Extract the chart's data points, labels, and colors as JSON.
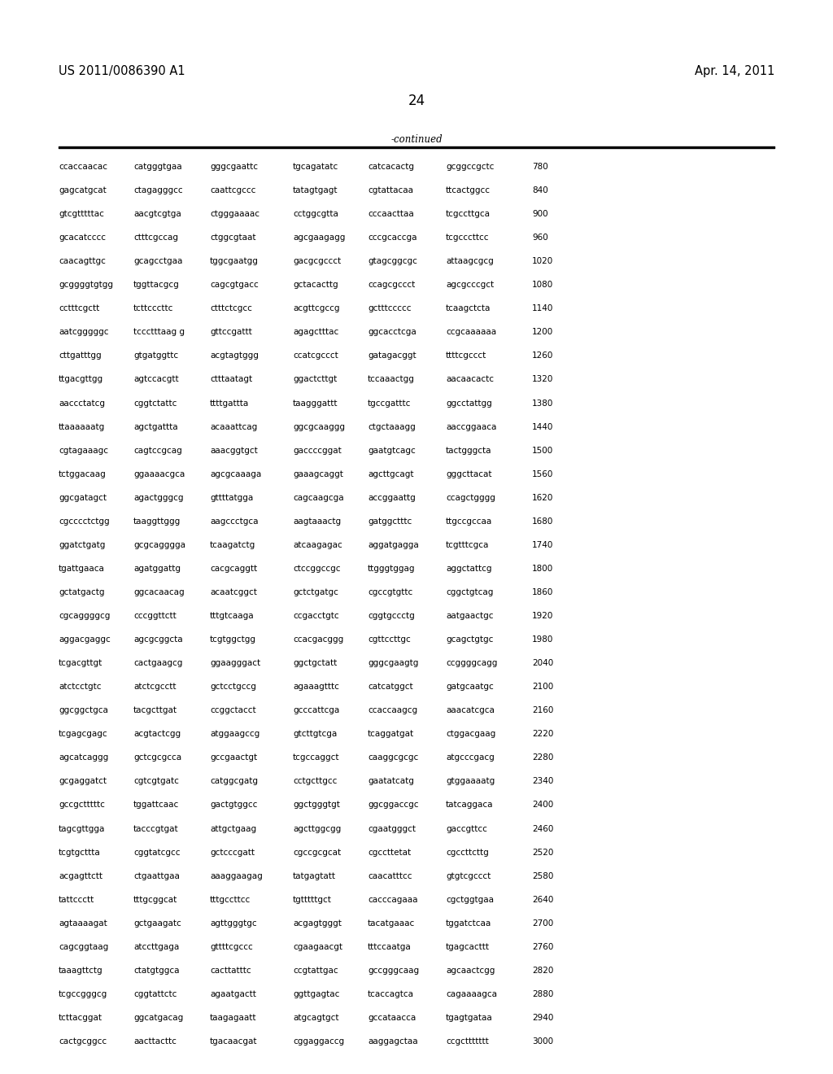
{
  "header_left": "US 2011/0086390 A1",
  "header_right": "Apr. 14, 2011",
  "page_number": "24",
  "continued_label": "-continued",
  "background_color": "#ffffff",
  "text_color": "#000000",
  "font_size": 7.5,
  "header_font_size": 10.5,
  "page_num_font_size": 12,
  "sequences": [
    [
      "ccaccaacac",
      "catgggtgaa",
      "gggcgaattc",
      "tgcagatatc",
      "catcacactg",
      "gcggccgctc",
      "780"
    ],
    [
      "gagcatgcat",
      "ctagagggcc",
      "caattcgccc",
      "tatagtgagt",
      "cgtattacaa",
      "ttcactggcc",
      "840"
    ],
    [
      "gtcgtttttac",
      "aacgtcgtga",
      "ctgggaaaac",
      "cctggcgtta",
      "cccaacttaa",
      "tcgccttgca",
      "900"
    ],
    [
      "gcacatcccc",
      "ctttcgccag",
      "ctggcgtaat",
      "agcgaagagg",
      "cccgcaccga",
      "tcgcccttcc",
      "960"
    ],
    [
      "caacagttgc",
      "gcagcctgaa",
      "tggcgaatgg",
      "gacgcgccct",
      "gtagcggcgc",
      "attaagcgcg",
      "1020"
    ],
    [
      "gcggggtgtgg",
      "tggttacgcg",
      "cagcgtgacc",
      "gctacacttg",
      "ccagcgccct",
      "agcgcccgct",
      "1080"
    ],
    [
      "cctttcgctt",
      "tcttcccttc",
      "ctttctcgcc",
      "acgttcgccg",
      "gctttccccc",
      "tcaagctcta",
      "1140"
    ],
    [
      "aatcgggggc",
      "tccctttaag g",
      "gttccgattt",
      "agagctttac",
      "ggcacctcga",
      "ccgcaaaaaa",
      "1200"
    ],
    [
      "cttgatttgg",
      "gtgatggttc",
      "acgtagtggg",
      "ccatcgccct",
      "gatagacggt",
      "ttttcgccct",
      "1260"
    ],
    [
      "ttgacgttgg",
      "agtccacgtt",
      "ctttaatagt",
      "ggactcttgt",
      "tccaaactgg",
      "aacaacactc",
      "1320"
    ],
    [
      "aaccctatcg",
      "cggtctattc",
      "ttttgattta",
      "taagggattt",
      "tgccgatttc",
      "ggcctattgg",
      "1380"
    ],
    [
      "ttaaaaaatg",
      "agctgattta",
      "acaaattcag",
      "ggcgcaaggg",
      "ctgctaaagg",
      "aaccggaaca",
      "1440"
    ],
    [
      "cgtagaaagc",
      "cagtccgcag",
      "aaacggtgct",
      "gaccccggat",
      "gaatgtcagc",
      "tactgggcta",
      "1500"
    ],
    [
      "tctggacaag",
      "ggaaaacgca",
      "agcgcaaaga",
      "gaaagcaggt",
      "agcttgcagt",
      "gggcttacat",
      "1560"
    ],
    [
      "ggcgatagct",
      "agactgggcg",
      "gttttatgga",
      "cagcaagcga",
      "accggaattg",
      "ccagctgggg",
      "1620"
    ],
    [
      "cgcccctctgg",
      "taaggttggg",
      "aagccctgca",
      "aagtaaactg",
      "gatggctttc",
      "ttgccgccaa",
      "1680"
    ],
    [
      "ggatctgatg",
      "gcgcagggga",
      "tcaagatctg",
      "atcaagagac",
      "aggatgagga",
      "tcgtttcgca",
      "1740"
    ],
    [
      "tgattgaaca",
      "agatggattg",
      "cacgcaggtt",
      "ctccggccgc",
      "ttgggtggag",
      "aggctattcg",
      "1800"
    ],
    [
      "gctatgactg",
      "ggcacaacag",
      "acaatcggct",
      "gctctgatgc",
      "cgccgtgttc",
      "cggctgtcag",
      "1860"
    ],
    [
      "cgcaggggcg",
      "cccggttctt",
      "tttgtcaaga",
      "ccgacctgtc",
      "cggtgccctg",
      "aatgaactgc",
      "1920"
    ],
    [
      "aggacgaggc",
      "agcgcggcta",
      "tcgtggctgg",
      "ccacgacggg",
      "cgttccttgc",
      "gcagctgtgc",
      "1980"
    ],
    [
      "tcgacgttgt",
      "cactgaagcg",
      "ggaagggact",
      "ggctgctatt",
      "gggcgaagtg",
      "ccggggcagg",
      "2040"
    ],
    [
      "atctcctgtc",
      "atctcgcctt",
      "gctcctgccg",
      "agaaagtttc",
      "catcatggct",
      "gatgcaatgc",
      "2100"
    ],
    [
      "ggcggctgca",
      "tacgcttgat",
      "ccggctacct",
      "gcccattcga",
      "ccaccaagcg",
      "aaacatcgca",
      "2160"
    ],
    [
      "tcgagcgagc",
      "acgtactcgg",
      "atggaagccg",
      "gtcttgtcga",
      "tcaggatgat",
      "ctggacgaag",
      "2220"
    ],
    [
      "agcatcaggg",
      "gctcgcgcca",
      "gccgaactgt",
      "tcgccaggct",
      "caaggcgcgc",
      "atgcccgacg",
      "2280"
    ],
    [
      "gcgaggatct",
      "cgtcgtgatc",
      "catggcgatg",
      "cctgcttgcc",
      "gaatatcatg",
      "gtggaaaatg",
      "2340"
    ],
    [
      "gccgctttttc",
      "tggattcaac",
      "gactgtggcc",
      "ggctgggtgt",
      "ggcggaccgc",
      "tatcaggaca",
      "2400"
    ],
    [
      "tagcgttgga",
      "tacccgtgat",
      "attgctgaag",
      "agcttggcgg",
      "cgaatgggct",
      "gaccgttcc",
      "2460"
    ],
    [
      "tcgtgcttta",
      "cggtatcgcc",
      "gctcccgatt",
      "cgccgcgcat",
      "cgccttetat",
      "cgccttcttg",
      "2520"
    ],
    [
      "acgagttctt",
      "ctgaattgaa",
      "aaaggaagag",
      "tatgagtatt",
      "caacatttcc",
      "gtgtcgccct",
      "2580"
    ],
    [
      "tattccctt",
      "tttgcggcat",
      "tttgccttcc",
      "tgtttttgct",
      "cacccagaaa",
      "cgctggtgaa",
      "2640"
    ],
    [
      "agtaaaagat",
      "gctgaagatc",
      "agttgggtgc",
      "acgagtgggt",
      "tacatgaaac",
      "tggatctcaa",
      "2700"
    ],
    [
      "cagcggtaag",
      "atccttgaga",
      "gttttcgccc",
      "cgaagaacgt",
      "tttccaatga",
      "tgagcacttt",
      "2760"
    ],
    [
      "taaagttctg",
      "ctatgtggca",
      "cacttatttc",
      "ccgtattgac",
      "gccgggcaag",
      "agcaactcgg",
      "2820"
    ],
    [
      "tcgccgggcg",
      "cggtattctc",
      "agaatgactt",
      "ggttgagtac",
      "tcaccagtca",
      "cagaaaagca",
      "2880"
    ],
    [
      "tcttacggat",
      "ggcatgacag",
      "taagagaatt",
      "atgcagtgct",
      "gccataacca",
      "tgagtgataa",
      "2940"
    ],
    [
      "cactgcggcc",
      "aacttacttc",
      "tgacaacgat",
      "cggaggaccg",
      "aaggagctaa",
      "ccgcttttttt",
      "3000"
    ]
  ]
}
